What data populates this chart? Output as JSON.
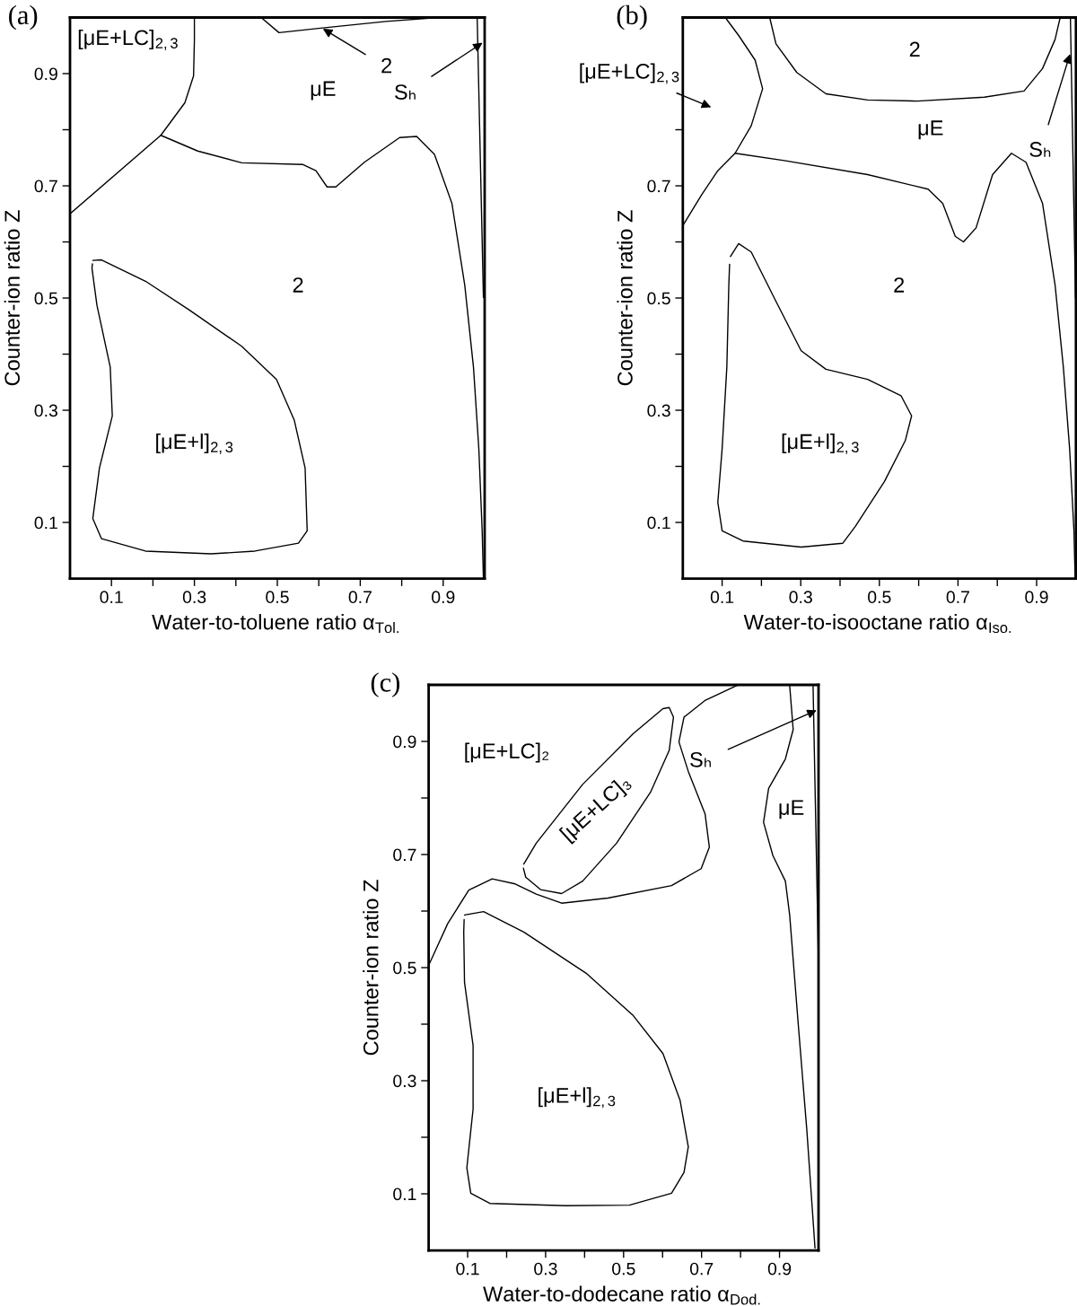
{
  "chart_data": [
    {
      "type": "line",
      "title": "(a)",
      "xlabel": "Water-to-toluene ratio α$_{Tol.}$",
      "ylabel": "Counter-ion ratio Z",
      "xlim": [
        0,
        1
      ],
      "ylim": [
        0,
        1
      ],
      "xticks": [
        0.1,
        {
          "value": 0.2,
          "label": null
        },
        0.3,
        {
          "value": 0.4,
          "label": null
        },
        0.5,
        {
          "value": 0.6,
          "label": null
        },
        0.7,
        {
          "value": 0.8,
          "label": null
        },
        0.9
      ],
      "yticks": [
        0.1,
        {
          "value": 0.2,
          "label": null
        },
        0.3,
        {
          "value": 0.4,
          "label": null
        },
        0.5,
        {
          "value": 0.6,
          "label": null
        },
        0.7,
        {
          "value": 0.8,
          "label": null
        },
        0.9
      ],
      "grid": false,
      "line_style": "solid",
      "marker": "none",
      "series": [
        {
          "color": "#000000",
          "x": [
            0,
            0.219,
            0.277,
            0.298,
            0.3,
            0.3
          ],
          "values": [
            0.65,
            0.79,
            0.848,
            0.896,
            0.96,
            1.0
          ]
        },
        {
          "color": "#000000",
          "x": [
            0.219,
            0.308,
            0.414,
            0.562,
            0.593,
            0.62,
            0.641,
            0.71,
            0.795,
            0.836,
            0.879,
            0.921,
            0.952,
            0.973,
            0.986,
            0.994,
            0.997
          ],
          "values": [
            0.79,
            0.762,
            0.741,
            0.738,
            0.727,
            0.698,
            0.698,
            0.742,
            0.786,
            0.788,
            0.756,
            0.669,
            0.523,
            0.377,
            0.231,
            0.085,
            0
          ]
        },
        {
          "color": "#000000",
          "x": [
            0.461,
            0.504,
            0.604,
            0.762,
            0.889
          ],
          "values": [
            1.0,
            0.973,
            0.981,
            0.993,
            1.0
          ]
        },
        {
          "color": "#000000",
          "x": [
            0.982,
            0.997
          ],
          "values": [
            1.0,
            0.501
          ]
        },
        {
          "color": "#000000",
          "x": [
            0.055,
            0.076,
            0.182,
            0.287,
            0.414,
            0.498,
            0.541,
            0.567,
            0.572,
            0.551,
            0.446,
            0.34,
            0.182,
            0.076,
            0.055,
            0.071,
            0.102,
            0.097,
            0.065,
            0.053,
            0.054
          ],
          "values": [
            0.567,
            0.568,
            0.53,
            0.479,
            0.414,
            0.355,
            0.282,
            0.197,
            0.085,
            0.063,
            0.049,
            0.044,
            0.049,
            0.071,
            0.107,
            0.197,
            0.29,
            0.377,
            0.487,
            0.553,
            0.561
          ]
        }
      ],
      "annotations": [
        "[μE+LC]$_{2,3}$",
        "μE",
        "2",
        {
          "text": "2",
          "x": 0.61,
          "y": 0.98
        },
        {
          "text": "Sₕ",
          "x": 0.995,
          "y": 0.955
        },
        "[μE+l]$_{2,3}$"
      ]
    },
    {
      "type": "line",
      "title": "(b)",
      "xlabel": "Water-to-isooctane ratio α$_{Iso.}$",
      "ylabel": "Counter-ion ratio Z",
      "xlim": [
        0,
        1
      ],
      "ylim": [
        0,
        1
      ],
      "xticks": [
        0.1,
        {
          "value": 0.2,
          "label": null
        },
        0.3,
        {
          "value": 0.4,
          "label": null
        },
        0.5,
        {
          "value": 0.6,
          "label": null
        },
        0.7,
        {
          "value": 0.8,
          "label": null
        },
        0.9
      ],
      "yticks": [
        0.1,
        {
          "value": 0.2,
          "label": null
        },
        0.3,
        {
          "value": 0.4,
          "label": null
        },
        0.5,
        {
          "value": 0.6,
          "label": null
        },
        0.7,
        {
          "value": 0.8,
          "label": null
        }
      ],
      "grid": false,
      "line_style": "solid",
      "marker": "none",
      "series": [
        {
          "color": "#000000",
          "x": [
            0,
            0.047,
            0.089,
            0.133,
            0.174,
            0.203,
            0.184,
            0.142,
            0.108
          ],
          "values": [
            0.629,
            0.683,
            0.727,
            0.758,
            0.807,
            0.873,
            0.924,
            0.968,
            1.0
          ]
        },
        {
          "color": "#000000",
          "x": [
            0.133,
            0.258,
            0.47,
            0.624,
            0.661,
            0.693,
            0.714,
            0.746,
            0.788,
            0.836,
            0.873,
            0.915,
            0.947,
            0.968,
            0.984,
            0.995,
            0.998
          ],
          "values": [
            0.758,
            0.745,
            0.72,
            0.694,
            0.669,
            0.61,
            0.6,
            0.625,
            0.72,
            0.758,
            0.742,
            0.669,
            0.523,
            0.377,
            0.231,
            0.085,
            0
          ]
        },
        {
          "color": "#000000",
          "x": [
            0.221,
            0.237,
            0.29,
            0.364,
            0.47,
            0.597,
            0.767,
            0.868,
            0.915,
            0.947,
            0.96
          ],
          "values": [
            1.0,
            0.953,
            0.902,
            0.864,
            0.853,
            0.851,
            0.858,
            0.869,
            0.909,
            0.961,
            1.0
          ]
        },
        {
          "color": "#000000",
          "x": [
            0.986,
            0.999
          ],
          "values": [
            1.0,
            0.5
          ]
        },
        {
          "color": "#000000",
          "x": [
            0.121,
            0.142,
            0.174,
            0.237,
            0.301,
            0.364,
            0.47,
            0.555,
            0.582,
            0.566,
            0.513,
            0.439,
            0.407,
            0.301,
            0.153,
            0.1,
            0.089,
            0.1,
            0.112,
            0.117,
            0.119
          ],
          "values": [
            0.574,
            0.597,
            0.582,
            0.494,
            0.406,
            0.373,
            0.355,
            0.326,
            0.29,
            0.246,
            0.173,
            0.093,
            0.063,
            0.056,
            0.067,
            0.085,
            0.136,
            0.231,
            0.377,
            0.523,
            0.56
          ]
        }
      ],
      "annotations": [
        "2",
        "μE",
        "2",
        "[μE+l]$_{2,3}$",
        "[μE+LC]$_{2,3}$",
        {
          "text": "Sₕ",
          "x": 0.985,
          "y": 0.935
        }
      ]
    },
    {
      "type": "line",
      "title": "(c)",
      "xlabel": "Water-to-dodecane ratio α$_{Dod.}$",
      "ylabel": "Counter-ion ratio Z",
      "xlim": [
        0,
        1
      ],
      "ylim": [
        0,
        1
      ],
      "xticks": [
        0.1,
        {
          "value": 0.2,
          "label": null
        },
        0.3,
        {
          "value": 0.4,
          "label": null
        },
        0.5,
        {
          "value": 0.6,
          "label": null
        },
        0.7,
        {
          "value": 0.8,
          "label": null
        },
        0.9
      ],
      "yticks": [
        0.1,
        {
          "value": 0.2,
          "label": null
        },
        0.3,
        {
          "value": 0.4,
          "label": null
        },
        0.5,
        {
          "value": 0.6,
          "label": null
        },
        0.7,
        {
          "value": 0.8,
          "label": null
        },
        0.9
      ],
      "grid": false,
      "line_style": "solid",
      "marker": "none",
      "series": [
        {
          "color": "#000000",
          "x": [
            0,
            0.049,
            0.103,
            0.163,
            0.222,
            0.276,
            0.341,
            0.46,
            0.623,
            0.699,
            0.72,
            0.709,
            0.666,
            0.642,
            0.655,
            0.71,
            0.791
          ],
          "values": [
            0.504,
            0.578,
            0.637,
            0.657,
            0.648,
            0.63,
            0.614,
            0.623,
            0.645,
            0.675,
            0.713,
            0.772,
            0.847,
            0.899,
            0.943,
            0.973,
            0.999
          ]
        },
        {
          "color": "#000000",
          "x": [
            0.244,
            0.276,
            0.395,
            0.525,
            0.601,
            0.617,
            0.628,
            0.617,
            0.569,
            0.482,
            0.395,
            0.341,
            0.287,
            0.249,
            0.243
          ],
          "values": [
            0.683,
            0.72,
            0.824,
            0.914,
            0.958,
            0.96,
            0.943,
            0.884,
            0.81,
            0.72,
            0.653,
            0.631,
            0.638,
            0.66,
            0.676
          ]
        },
        {
          "color": "#000000",
          "x": [
            0.926,
            0.935,
            0.915,
            0.872,
            0.859,
            0.883,
            0.915,
            0.926,
            0.948,
            0.97,
            0.991
          ],
          "values": [
            0.999,
            0.921,
            0.869,
            0.817,
            0.757,
            0.698,
            0.653,
            0.593,
            0.4,
            0.213,
            0.004
          ]
        },
        {
          "color": "#000000",
          "x": [
            0.986,
            1.0
          ],
          "values": [
            0.999,
            0.505
          ]
        },
        {
          "color": "#000000",
          "x": [
            0.092,
            0.141,
            0.244,
            0.406,
            0.525,
            0.601,
            0.645,
            0.666,
            0.655,
            0.623,
            0.515,
            0.352,
            0.157,
            0.108,
            0.098,
            0.114,
            0.114,
            0.092,
            0.09,
            0.091
          ],
          "values": [
            0.593,
            0.599,
            0.563,
            0.489,
            0.415,
            0.348,
            0.265,
            0.183,
            0.138,
            0.101,
            0.08,
            0.079,
            0.083,
            0.101,
            0.146,
            0.25,
            0.362,
            0.474,
            0.563,
            0.585
          ]
        }
      ],
      "annotations": [
        "[μE+LC]₂",
        "[μE+LC]₃",
        "[μE+l]$_{2,3}$",
        {
          "text": "Sₕ",
          "x": 0.995,
          "y": 0.955
        },
        "μE"
      ]
    }
  ]
}
